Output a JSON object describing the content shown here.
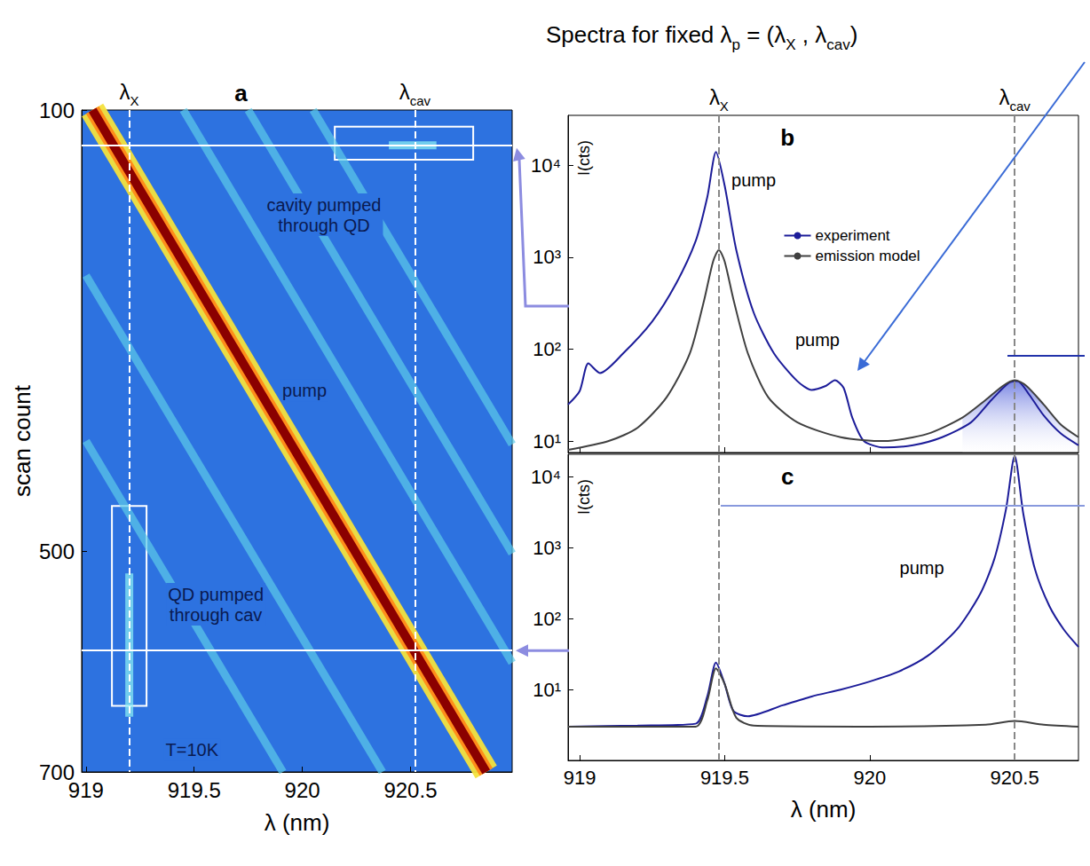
{
  "heading": [
    {
      "text": "Spectra for fixed λ"
    },
    {
      "sub": "p"
    },
    {
      "text": " = (λ"
    },
    {
      "sub": "X"
    },
    {
      "text": " , λ"
    },
    {
      "sub": "cav"
    },
    {
      "text": ")"
    }
  ],
  "chart_data": [
    {
      "panel": "a",
      "type": "heatmap",
      "xlabel": "λ (nm)",
      "ylabel": "scan count",
      "xlim": [
        918.98,
        920.97
      ],
      "xticks": [
        919,
        919.5,
        920,
        920.5
      ],
      "ylim": [
        700,
        100
      ],
      "yticks": [
        100,
        500,
        700
      ],
      "grid": false,
      "markers": [
        {
          "label": "λ",
          "subscript": "X",
          "x": 919.2
        },
        {
          "label": "λ",
          "subscript": "cav",
          "x": 920.52
        }
      ],
      "hlines": [
        132,
        590
      ],
      "boxes": [
        {
          "x": [
            920.15,
            920.79
          ],
          "y": [
            115,
            145
          ]
        },
        {
          "x": [
            919.12,
            919.28
          ],
          "y": [
            459,
            640
          ]
        }
      ],
      "annotations": [
        {
          "lines": [
            "cavity pumped",
            "through QD"
          ],
          "x": 920.1,
          "y": 195
        },
        {
          "text": "pump",
          "x": 920.01,
          "y": 354
        },
        {
          "lines": [
            "QD pumped",
            "through cav"
          ],
          "x": 919.6,
          "y": 548
        },
        {
          "text": "T=10K",
          "x": 919.49,
          "y": 680
        }
      ],
      "series": [
        {
          "color": "#8b0000",
          "line_style": "glow",
          "values": [
            [
              919.03,
              100
            ],
            [
              920.85,
              700
            ]
          ]
        },
        {
          "color": "#5ccbe8",
          "line_style": "soft",
          "values": [
            [
              919.45,
              100
            ],
            [
              920.97,
              601
            ]
          ]
        },
        {
          "color": "#5ccbe8",
          "line_style": "soft",
          "values": [
            [
              919.75,
              100
            ],
            [
              920.97,
              502
            ]
          ]
        },
        {
          "color": "#5ccbe8",
          "line_style": "soft",
          "values": [
            [
              920.05,
              100
            ],
            [
              920.97,
              403
            ]
          ]
        },
        {
          "color": "#5ccbe8",
          "line_style": "soft",
          "values": [
            [
              919.0,
              250
            ],
            [
              920.37,
              700
            ]
          ]
        },
        {
          "color": "#5ccbe8",
          "line_style": "soft",
          "values": [
            [
              919.0,
              400
            ],
            [
              919.91,
              700
            ]
          ]
        },
        {
          "color": "#8ff4f4",
          "line_style": "soft",
          "values": [
            [
              919.2,
              520
            ],
            [
              919.2,
              650
            ]
          ]
        },
        {
          "color": "#8ff4f4",
          "line_style": "soft",
          "values": [
            [
              920.4,
              132
            ],
            [
              920.62,
              132
            ]
          ]
        }
      ]
    },
    {
      "panel": "b",
      "type": "line",
      "ylabel": "I(cts)",
      "log": "y",
      "tick_labels": "y",
      "xlim": [
        918.96,
        920.72
      ],
      "xticks": [
        919,
        919.5,
        920,
        920.5
      ],
      "ylim": [
        7.5,
        35000
      ],
      "yticks": [
        {
          "value": 10,
          "label": "10¹"
        },
        {
          "value": 100,
          "label": "10²"
        },
        {
          "value": 1000,
          "label": "10³"
        },
        {
          "value": 10000,
          "label": "10⁴"
        }
      ],
      "grid": false,
      "legend": "upper center",
      "markers": [
        {
          "label": "λ",
          "subscript": "X",
          "x": 919.48
        },
        {
          "label": "λ",
          "subscript": "cav",
          "x": 920.5
        }
      ],
      "annotations": [
        {
          "text": "pump",
          "x": 919.6,
          "y": 6900
        },
        {
          "text": "pump",
          "x": 919.82,
          "y": 125
        }
      ],
      "series": [
        {
          "name": "experiment",
          "color": "#1c1c99",
          "values": [
            [
              918.96,
              25
            ],
            [
              919.0,
              35
            ],
            [
              919.03,
              70
            ],
            [
              919.07,
              55
            ],
            [
              919.15,
              90
            ],
            [
              919.25,
              200
            ],
            [
              919.33,
              500
            ],
            [
              919.4,
              1500
            ],
            [
              919.44,
              4500
            ],
            [
              919.47,
              14000
            ],
            [
              919.5,
              6000
            ],
            [
              919.54,
              1200
            ],
            [
              919.6,
              250
            ],
            [
              919.67,
              90
            ],
            [
              919.75,
              45
            ],
            [
              919.8,
              36
            ],
            [
              919.85,
              40
            ],
            [
              919.88,
              46
            ],
            [
              919.91,
              38
            ],
            [
              919.94,
              18
            ],
            [
              919.98,
              10
            ],
            [
              920.05,
              8.5
            ],
            [
              920.15,
              9
            ],
            [
              920.25,
              11
            ],
            [
              920.35,
              16
            ],
            [
              920.42,
              28
            ],
            [
              920.48,
              43
            ],
            [
              920.51,
              45
            ],
            [
              920.55,
              32
            ],
            [
              920.6,
              19
            ],
            [
              920.66,
              12
            ],
            [
              920.72,
              9
            ]
          ]
        },
        {
          "name": "emission model",
          "color": "#404040",
          "shaded_range": [
            920.3,
            920.72
          ],
          "values": [
            [
              918.96,
              8
            ],
            [
              919.1,
              10
            ],
            [
              919.2,
              14
            ],
            [
              919.3,
              30
            ],
            [
              919.38,
              90
            ],
            [
              919.43,
              350
            ],
            [
              919.46,
              900
            ],
            [
              919.48,
              1200
            ],
            [
              919.5,
              900
            ],
            [
              919.53,
              350
            ],
            [
              919.58,
              90
            ],
            [
              919.65,
              30
            ],
            [
              919.75,
              16
            ],
            [
              919.9,
              11
            ],
            [
              920.05,
              10
            ],
            [
              920.2,
              12
            ],
            [
              920.32,
              18
            ],
            [
              920.4,
              28
            ],
            [
              920.46,
              40
            ],
            [
              920.5,
              46
            ],
            [
              920.54,
              40
            ],
            [
              920.6,
              25
            ],
            [
              920.66,
              15
            ],
            [
              920.72,
              11
            ]
          ]
        }
      ]
    },
    {
      "panel": "c",
      "type": "line",
      "xlabel": "λ (nm)",
      "ylabel": "I(cts)",
      "log": "y",
      "xlim": [
        918.96,
        920.72
      ],
      "xticks": [
        919,
        919.5,
        920,
        920.5
      ],
      "ylim": [
        1,
        21000
      ],
      "yticks": [
        {
          "value": 10,
          "label": "10¹"
        },
        {
          "value": 100,
          "label": "10²"
        },
        {
          "value": 1000,
          "label": "10³"
        },
        {
          "value": 10000,
          "label": "10⁴"
        }
      ],
      "grid": false,
      "vlines": [
        919.48,
        920.5
      ],
      "annotations": [
        {
          "text": "pump",
          "x": 920.18,
          "y": 530
        }
      ],
      "series": [
        {
          "name": "experiment",
          "color": "#1c1c99",
          "values": [
            [
              918.96,
              3
            ],
            [
              919.2,
              3.1
            ],
            [
              919.4,
              3.3
            ],
            [
              919.44,
              8
            ],
            [
              919.47,
              24
            ],
            [
              919.5,
              12
            ],
            [
              919.53,
              5
            ],
            [
              919.58,
              4.2
            ],
            [
              919.7,
              6
            ],
            [
              919.8,
              8
            ],
            [
              919.9,
              10
            ],
            [
              920.0,
              13
            ],
            [
              920.1,
              18
            ],
            [
              920.2,
              30
            ],
            [
              920.3,
              70
            ],
            [
              920.38,
              220
            ],
            [
              920.43,
              700
            ],
            [
              920.47,
              3500
            ],
            [
              920.5,
              20000
            ],
            [
              920.53,
              3000
            ],
            [
              920.57,
              500
            ],
            [
              920.62,
              150
            ],
            [
              920.67,
              70
            ],
            [
              920.72,
              40
            ]
          ]
        },
        {
          "name": "emission model",
          "color": "#404040",
          "values": [
            [
              918.96,
              3
            ],
            [
              919.4,
              3
            ],
            [
              919.44,
              7
            ],
            [
              919.47,
              20
            ],
            [
              919.5,
              12
            ],
            [
              919.54,
              4
            ],
            [
              919.6,
              3.1
            ],
            [
              920.0,
              3
            ],
            [
              920.4,
              3.2
            ],
            [
              920.5,
              3.6
            ],
            [
              920.6,
              3.2
            ],
            [
              920.72,
              3
            ]
          ]
        }
      ]
    }
  ]
}
